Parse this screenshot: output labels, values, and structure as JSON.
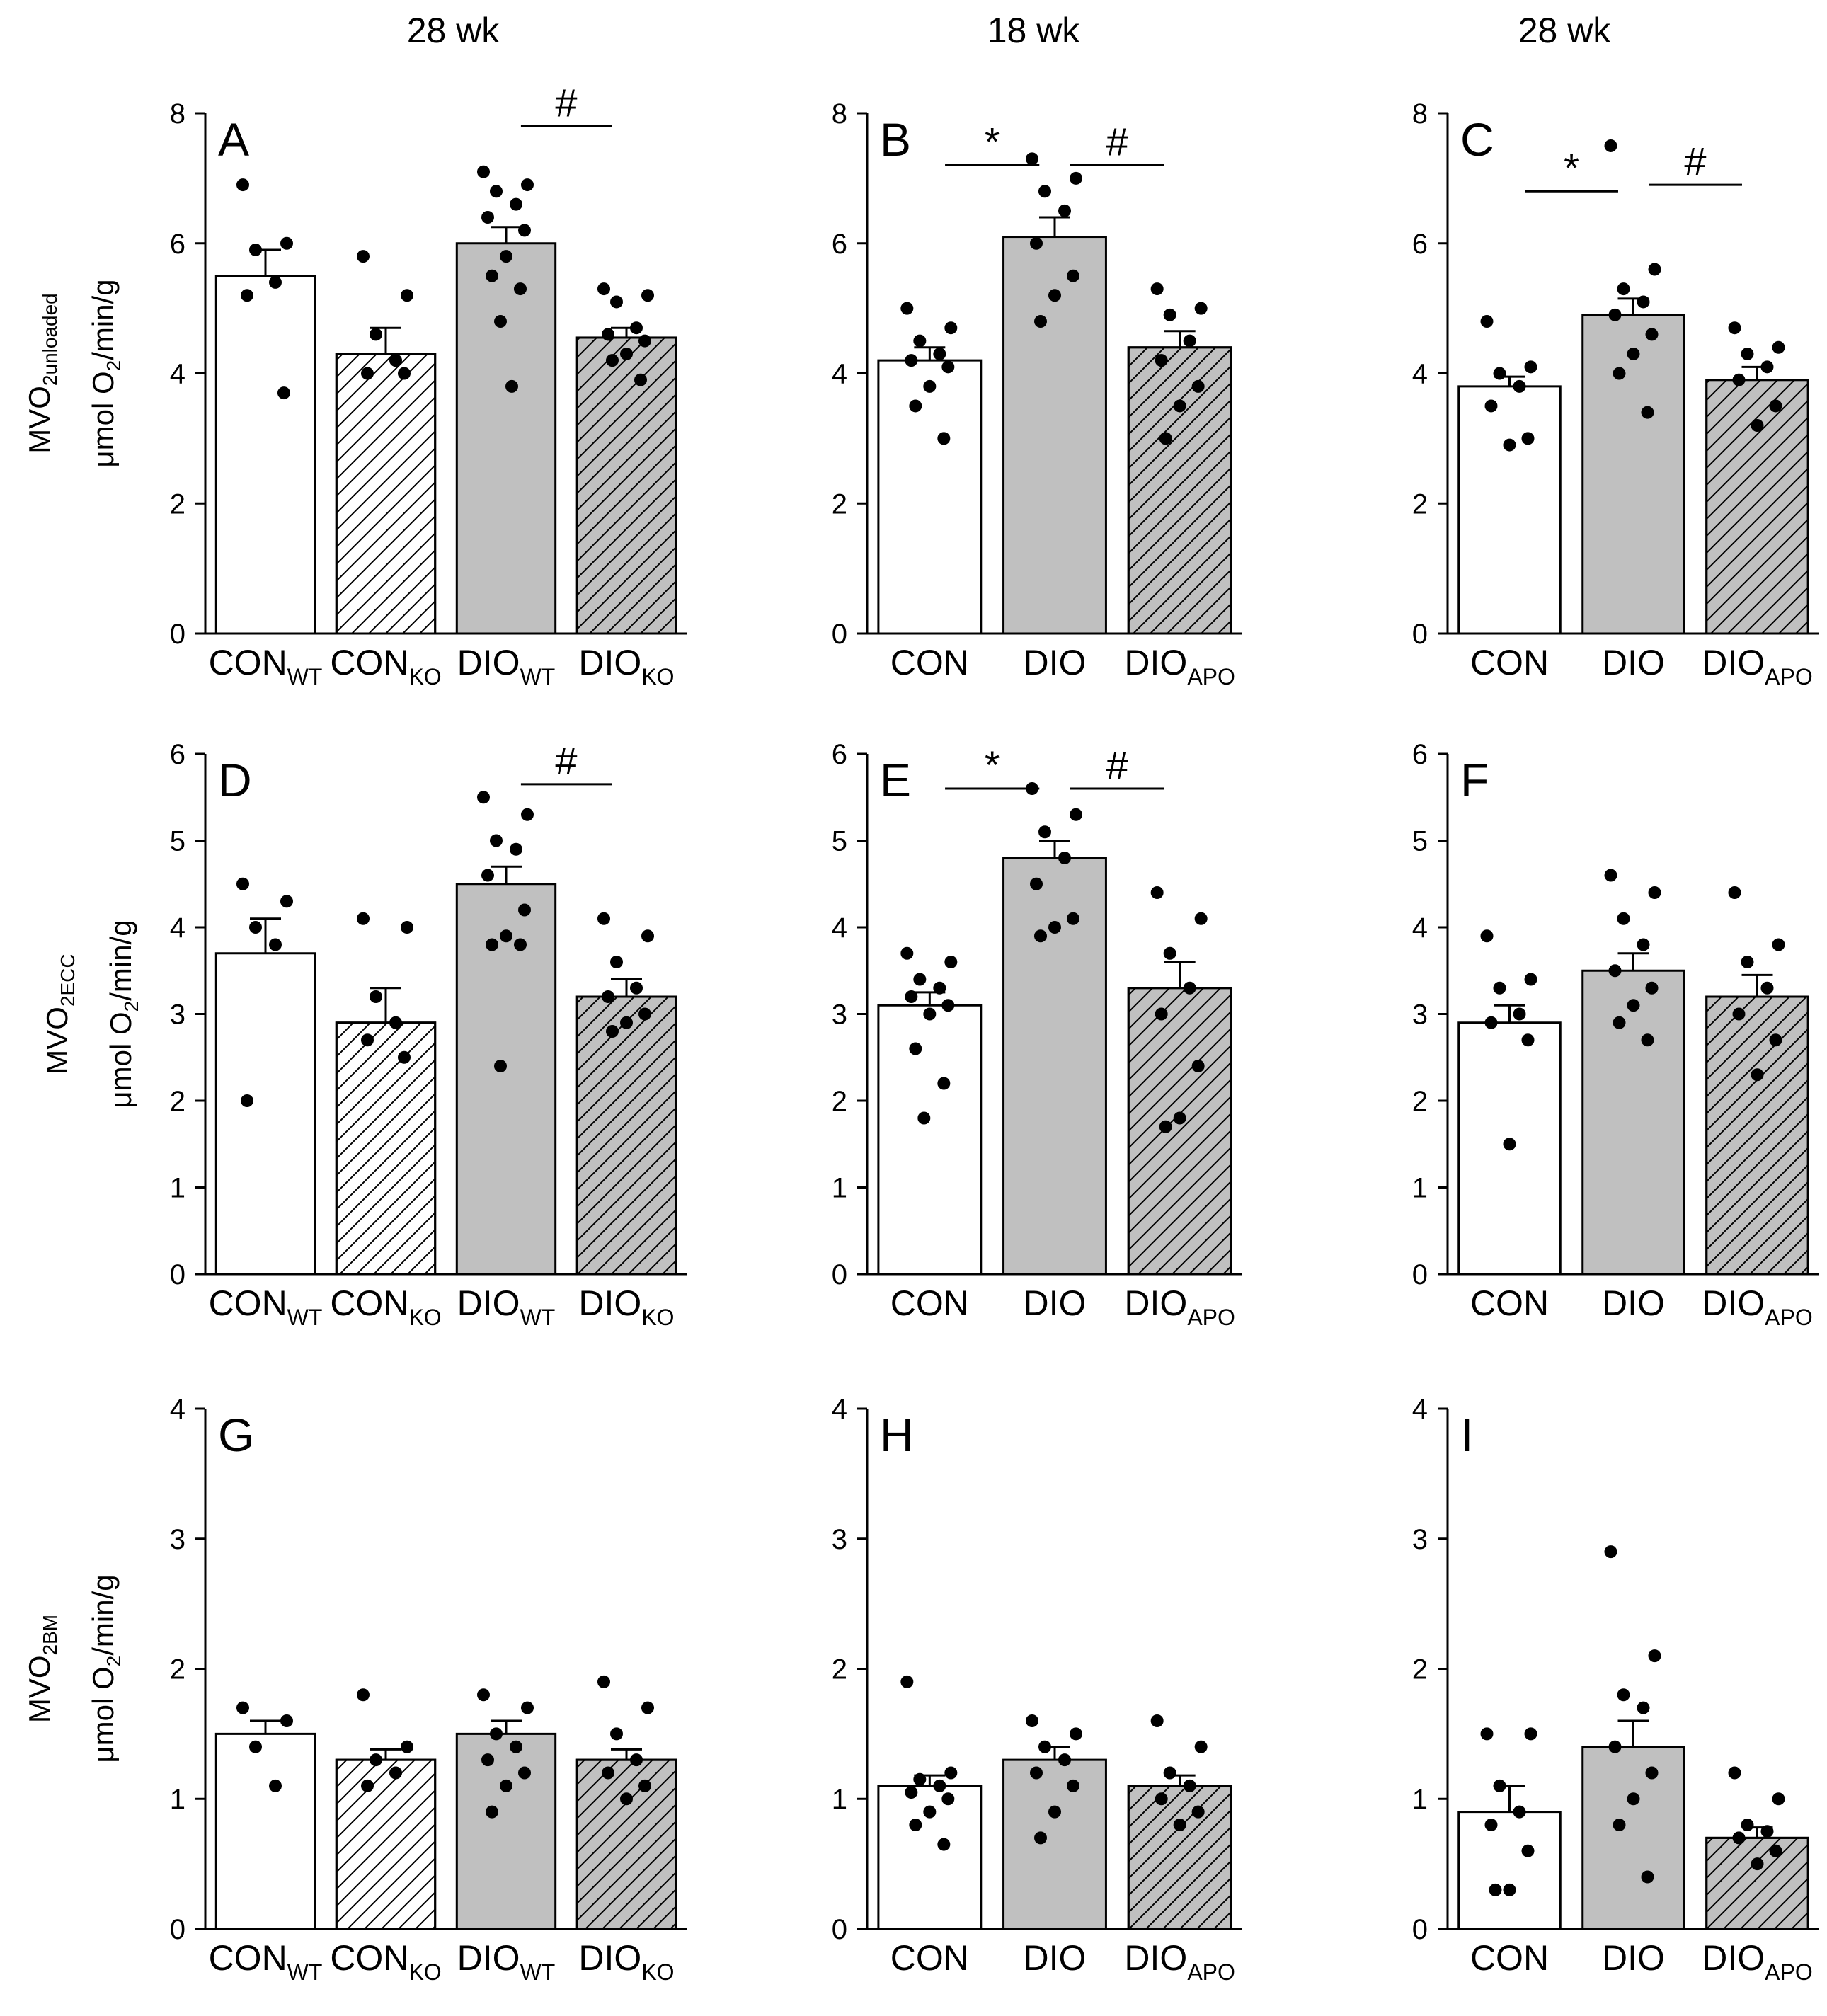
{
  "colors": {
    "bar_white": "#ffffff",
    "bar_gray": "#c0c0c0",
    "bar_stroke": "#000000",
    "hatch": "#000000",
    "point": "#000000"
  },
  "column_headers": [
    "28 wk",
    "18 wk",
    "28 wk"
  ],
  "row_ylabels": [
    {
      "main": "MVO",
      "sub": "2unloaded",
      "unit": "μmol O",
      "unit_sub": "2",
      "unit_tail": "/min/g"
    },
    {
      "main": "MVO",
      "sub": "2ECC",
      "unit": "μmol O",
      "unit_sub": "2",
      "unit_tail": "/min/g"
    },
    {
      "main": "MVO",
      "sub": "2BM",
      "unit": "μmol O",
      "unit_sub": "2",
      "unit_tail": "/min/g"
    }
  ],
  "chart_data": [
    {
      "panel": "A",
      "type": "bar",
      "ylim": [
        0,
        8
      ],
      "yticks": [
        0,
        2,
        4,
        6,
        8
      ],
      "categories": [
        {
          "main": "CON",
          "sub": "WT"
        },
        {
          "main": "CON",
          "sub": "KO"
        },
        {
          "main": "DIO",
          "sub": "WT"
        },
        {
          "main": "DIO",
          "sub": "KO"
        }
      ],
      "values": [
        5.5,
        4.3,
        6.0,
        4.55
      ],
      "errors": [
        0.4,
        0.4,
        0.25,
        0.15
      ],
      "fills": [
        "white",
        "white",
        "gray",
        "gray"
      ],
      "hatched": [
        false,
        true,
        false,
        true
      ],
      "points": [
        [
          6.9,
          6.0,
          5.9,
          5.4,
          5.2,
          3.7
        ],
        [
          5.8,
          5.2,
          4.6,
          4.2,
          4.0,
          4.0
        ],
        [
          7.1,
          6.9,
          6.8,
          6.6,
          6.4,
          6.2,
          5.8,
          5.5,
          5.3,
          4.8,
          3.8
        ],
        [
          5.3,
          5.2,
          5.1,
          4.7,
          4.6,
          4.5,
          4.3,
          4.2,
          3.9
        ]
      ],
      "significance": [
        {
          "from": 3,
          "to": 4,
          "y": 7.8,
          "label": "#"
        }
      ]
    },
    {
      "panel": "B",
      "type": "bar",
      "ylim": [
        0,
        8
      ],
      "yticks": [
        0,
        2,
        4,
        6,
        8
      ],
      "categories": [
        {
          "main": "CON",
          "sub": ""
        },
        {
          "main": "DIO",
          "sub": ""
        },
        {
          "main": "DIO",
          "sub": "APO"
        }
      ],
      "values": [
        4.2,
        6.1,
        4.4
      ],
      "errors": [
        0.2,
        0.3,
        0.25
      ],
      "fills": [
        "white",
        "gray",
        "gray"
      ],
      "hatched": [
        false,
        false,
        true
      ],
      "points": [
        [
          5.0,
          4.7,
          4.5,
          4.3,
          4.2,
          4.1,
          3.8,
          3.5,
          3.0
        ],
        [
          7.3,
          7.0,
          6.8,
          6.5,
          6.0,
          5.5,
          5.2,
          4.8
        ],
        [
          5.3,
          5.0,
          4.9,
          4.5,
          4.2,
          3.8,
          3.5,
          3.0
        ]
      ],
      "significance": [
        {
          "from": 1,
          "to": 2,
          "y": 7.2,
          "label": "*"
        },
        {
          "from": 2,
          "to": 3,
          "y": 7.2,
          "label": "#"
        }
      ]
    },
    {
      "panel": "C",
      "type": "bar",
      "ylim": [
        0,
        8
      ],
      "yticks": [
        0,
        2,
        4,
        6,
        8
      ],
      "categories": [
        {
          "main": "CON",
          "sub": ""
        },
        {
          "main": "DIO",
          "sub": ""
        },
        {
          "main": "DIO",
          "sub": "APO"
        }
      ],
      "values": [
        3.8,
        4.9,
        3.9
      ],
      "errors": [
        0.15,
        0.25,
        0.2
      ],
      "fills": [
        "white",
        "gray",
        "gray"
      ],
      "hatched": [
        false,
        false,
        true
      ],
      "points": [
        [
          4.8,
          4.1,
          4.0,
          3.8,
          3.5,
          3.0,
          2.9
        ],
        [
          7.5,
          5.6,
          5.3,
          5.1,
          4.9,
          4.6,
          4.3,
          4.0,
          3.4
        ],
        [
          4.7,
          4.4,
          4.3,
          4.1,
          3.9,
          3.5,
          3.2
        ]
      ],
      "significance": [
        {
          "from": 1,
          "to": 2,
          "y": 6.8,
          "label": "*"
        },
        {
          "from": 2,
          "to": 3,
          "y": 6.9,
          "label": "#"
        }
      ]
    },
    {
      "panel": "D",
      "type": "bar",
      "ylim": [
        0,
        6
      ],
      "yticks": [
        0,
        1,
        2,
        3,
        4,
        5,
        6
      ],
      "categories": [
        {
          "main": "CON",
          "sub": "WT"
        },
        {
          "main": "CON",
          "sub": "KO"
        },
        {
          "main": "DIO",
          "sub": "WT"
        },
        {
          "main": "DIO",
          "sub": "KO"
        }
      ],
      "values": [
        3.7,
        2.9,
        4.5,
        3.2
      ],
      "errors": [
        0.4,
        0.4,
        0.2,
        0.2
      ],
      "fills": [
        "white",
        "white",
        "gray",
        "gray"
      ],
      "hatched": [
        false,
        true,
        false,
        true
      ],
      "points": [
        [
          4.5,
          4.3,
          4.0,
          3.8,
          2.0
        ],
        [
          4.1,
          4.0,
          3.2,
          2.9,
          2.7,
          2.5
        ],
        [
          5.5,
          5.3,
          5.0,
          4.9,
          4.6,
          4.2,
          3.9,
          3.8,
          3.8,
          2.4
        ],
        [
          4.1,
          3.9,
          3.6,
          3.3,
          3.2,
          3.0,
          2.9,
          2.8
        ]
      ],
      "significance": [
        {
          "from": 3,
          "to": 4,
          "y": 5.65,
          "label": "#"
        }
      ]
    },
    {
      "panel": "E",
      "type": "bar",
      "ylim": [
        0,
        6
      ],
      "yticks": [
        0,
        1,
        2,
        3,
        4,
        5,
        6
      ],
      "categories": [
        {
          "main": "CON",
          "sub": ""
        },
        {
          "main": "DIO",
          "sub": ""
        },
        {
          "main": "DIO",
          "sub": "APO"
        }
      ],
      "values": [
        3.1,
        4.8,
        3.3
      ],
      "errors": [
        0.15,
        0.2,
        0.3
      ],
      "fills": [
        "white",
        "gray",
        "gray"
      ],
      "hatched": [
        false,
        false,
        true
      ],
      "points": [
        [
          3.7,
          3.6,
          3.4,
          3.3,
          3.2,
          3.1,
          3.0,
          2.6,
          2.2,
          1.8
        ],
        [
          5.6,
          5.3,
          5.1,
          4.8,
          4.5,
          4.1,
          4.0,
          3.9
        ],
        [
          4.4,
          4.1,
          3.7,
          3.3,
          3.0,
          2.4,
          1.8,
          1.7
        ]
      ],
      "significance": [
        {
          "from": 1,
          "to": 2,
          "y": 5.6,
          "label": "*"
        },
        {
          "from": 2,
          "to": 3,
          "y": 5.6,
          "label": "#"
        }
      ]
    },
    {
      "panel": "F",
      "type": "bar",
      "ylim": [
        0,
        6
      ],
      "yticks": [
        0,
        1,
        2,
        3,
        4,
        5,
        6
      ],
      "categories": [
        {
          "main": "CON",
          "sub": ""
        },
        {
          "main": "DIO",
          "sub": ""
        },
        {
          "main": "DIO",
          "sub": "APO"
        }
      ],
      "values": [
        2.9,
        3.5,
        3.2
      ],
      "errors": [
        0.2,
        0.2,
        0.25
      ],
      "fills": [
        "white",
        "gray",
        "gray"
      ],
      "hatched": [
        false,
        false,
        true
      ],
      "points": [
        [
          3.9,
          3.4,
          3.3,
          3.0,
          2.9,
          2.7,
          1.5
        ],
        [
          4.6,
          4.4,
          4.1,
          3.8,
          3.5,
          3.3,
          3.1,
          2.9,
          2.7
        ],
        [
          4.4,
          3.8,
          3.6,
          3.3,
          3.0,
          2.7,
          2.3
        ]
      ],
      "significance": []
    },
    {
      "panel": "G",
      "type": "bar",
      "ylim": [
        0,
        4
      ],
      "yticks": [
        0,
        1,
        2,
        3,
        4
      ],
      "categories": [
        {
          "main": "CON",
          "sub": "WT"
        },
        {
          "main": "CON",
          "sub": "KO"
        },
        {
          "main": "DIO",
          "sub": "WT"
        },
        {
          "main": "DIO",
          "sub": "KO"
        }
      ],
      "values": [
        1.5,
        1.3,
        1.5,
        1.3
      ],
      "errors": [
        0.1,
        0.08,
        0.1,
        0.08
      ],
      "fills": [
        "white",
        "white",
        "gray",
        "gray"
      ],
      "hatched": [
        false,
        true,
        false,
        true
      ],
      "points": [
        [
          1.7,
          1.6,
          1.4,
          1.1
        ],
        [
          1.8,
          1.4,
          1.3,
          1.2,
          1.1
        ],
        [
          1.8,
          1.7,
          1.5,
          1.4,
          1.3,
          1.2,
          1.1,
          0.9
        ],
        [
          1.9,
          1.7,
          1.5,
          1.3,
          1.2,
          1.1,
          1.0
        ]
      ],
      "significance": []
    },
    {
      "panel": "H",
      "type": "bar",
      "ylim": [
        0,
        4
      ],
      "yticks": [
        0,
        1,
        2,
        3,
        4
      ],
      "categories": [
        {
          "main": "CON",
          "sub": ""
        },
        {
          "main": "DIO",
          "sub": ""
        },
        {
          "main": "DIO",
          "sub": "APO"
        }
      ],
      "values": [
        1.1,
        1.3,
        1.1
      ],
      "errors": [
        0.08,
        0.1,
        0.08
      ],
      "fills": [
        "white",
        "gray",
        "gray"
      ],
      "hatched": [
        false,
        false,
        true
      ],
      "points": [
        [
          1.9,
          1.2,
          1.15,
          1.1,
          1.05,
          1.0,
          0.9,
          0.8,
          0.65
        ],
        [
          1.6,
          1.5,
          1.4,
          1.3,
          1.2,
          1.1,
          0.9,
          0.7
        ],
        [
          1.6,
          1.4,
          1.2,
          1.1,
          1.0,
          0.9,
          0.8
        ]
      ],
      "significance": []
    },
    {
      "panel": "I",
      "type": "bar",
      "ylim": [
        0,
        4
      ],
      "yticks": [
        0,
        1,
        2,
        3,
        4
      ],
      "categories": [
        {
          "main": "CON",
          "sub": ""
        },
        {
          "main": "DIO",
          "sub": ""
        },
        {
          "main": "DIO",
          "sub": "APO"
        }
      ],
      "values": [
        0.9,
        1.4,
        0.7
      ],
      "errors": [
        0.2,
        0.2,
        0.08
      ],
      "fills": [
        "white",
        "gray",
        "gray"
      ],
      "hatched": [
        false,
        false,
        true
      ],
      "points": [
        [
          1.5,
          1.5,
          1.1,
          0.9,
          0.8,
          0.6,
          0.3,
          0.3
        ],
        [
          2.9,
          2.1,
          1.8,
          1.7,
          1.4,
          1.2,
          1.0,
          0.8,
          0.4
        ],
        [
          1.2,
          1.0,
          0.8,
          0.75,
          0.7,
          0.6,
          0.5
        ]
      ],
      "significance": []
    }
  ]
}
